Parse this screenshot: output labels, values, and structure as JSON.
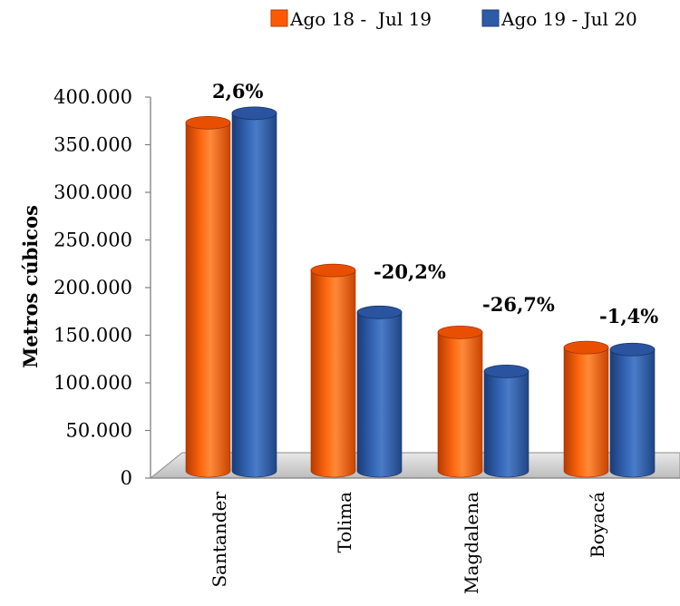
{
  "chart_data": {
    "type": "bar",
    "title": "",
    "xlabel": "",
    "ylabel": "Metros cúbicos",
    "categories": [
      "Santander",
      "Tolima",
      "Magdalena",
      "Boyacá"
    ],
    "series": [
      {
        "name": "Ago 18 -  Jul 19",
        "color": "#FF5A00",
        "values": [
          373000,
          218000,
          153000,
          137000
        ]
      },
      {
        "name": "Ago 19 - Jul 20",
        "color": "#2E5BA8",
        "values": [
          383000,
          174000,
          112000,
          135000
        ]
      }
    ],
    "yticks": [
      "0",
      "50.000",
      "100.000",
      "150.000",
      "200.000",
      "250.000",
      "300.000",
      "350.000",
      "400.000"
    ],
    "ylim": [
      0,
      400000
    ],
    "annotations": [
      "2,6%",
      "-20,2%",
      "-26,7%",
      "-1,4%"
    ],
    "legend_position": "top-right",
    "grid": false
  }
}
